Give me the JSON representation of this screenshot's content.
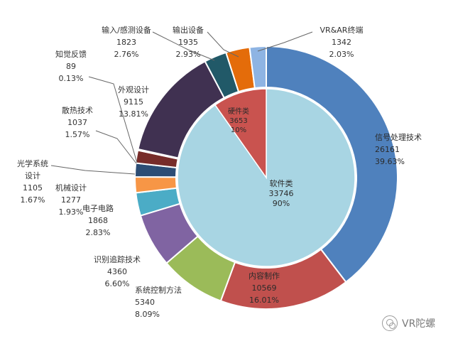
{
  "chart_data": {
    "type": "pie",
    "subtype": "nested-donut",
    "inner": [
      {
        "name": "软件类",
        "value": 33746,
        "percent": "90%",
        "color": "#a8d5e3"
      },
      {
        "name": "硬件类",
        "value": 3653,
        "percent": "10%",
        "color": "#c9534f"
      }
    ],
    "outer": [
      {
        "name": "信号处理技术",
        "value": 26161,
        "percent": "39.63%",
        "color": "#4f81bd"
      },
      {
        "name": "内容制作",
        "value": 10569,
        "percent": "16.01%",
        "color": "#c0504d"
      },
      {
        "name": "系统控制方法",
        "value": 5340,
        "percent": "8.09%",
        "color": "#9bbb59"
      },
      {
        "name": "识别追踪技术",
        "value": 4360,
        "percent": "6.60%",
        "color": "#8064a2"
      },
      {
        "name": "电子电路",
        "value": 1868,
        "percent": "2.83%",
        "color": "#4bacc6"
      },
      {
        "name": "机械设计",
        "value": 1277,
        "percent": "1.93%",
        "color": "#f79646"
      },
      {
        "name": "光学系统设计",
        "value": 1105,
        "percent": "1.67%",
        "color": "#2c4d75"
      },
      {
        "name": "散热技术",
        "value": 1037,
        "percent": "1.57%",
        "color": "#772c2a"
      },
      {
        "name": "知觉反馈",
        "value": 89,
        "percent": "0.13%",
        "color": "#5f7530"
      },
      {
        "name": "外观设计",
        "value": 9115,
        "percent": "13.81%",
        "color": "#403151"
      },
      {
        "name": "输入/感测设备",
        "value": 1823,
        "percent": "2.76%",
        "color": "#215968"
      },
      {
        "name": "输出设备",
        "value": 1935,
        "percent": "2.93%",
        "color": "#e46c0a"
      },
      {
        "name": "VR&AR终端",
        "value": 1342,
        "percent": "2.03%",
        "color": "#8eb4e3"
      }
    ]
  },
  "watermark": {
    "text": "VR陀螺",
    "icon": "wechat-icon"
  }
}
